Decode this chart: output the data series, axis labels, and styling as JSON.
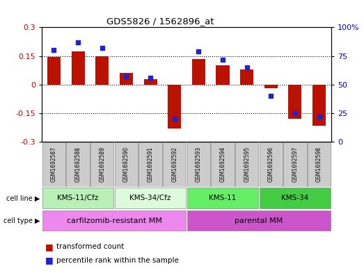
{
  "title": "GDS5826 / 1562896_at",
  "samples": [
    "GSM1692587",
    "GSM1692588",
    "GSM1692589",
    "GSM1692590",
    "GSM1692591",
    "GSM1692592",
    "GSM1692593",
    "GSM1692594",
    "GSM1692595",
    "GSM1692596",
    "GSM1692597",
    "GSM1692598"
  ],
  "transformed_count": [
    0.145,
    0.175,
    0.148,
    0.06,
    0.03,
    -0.23,
    0.135,
    0.1,
    0.08,
    -0.02,
    -0.18,
    -0.215
  ],
  "percentile_rank": [
    80,
    87,
    82,
    57,
    56,
    20,
    79,
    72,
    65,
    40,
    25,
    22
  ],
  "cell_lines": [
    {
      "label": "KMS-11/Cfz",
      "start": 0,
      "end": 3,
      "color": "#b8f0b8"
    },
    {
      "label": "KMS-34/Cfz",
      "start": 3,
      "end": 6,
      "color": "#ddfadd"
    },
    {
      "label": "KMS-11",
      "start": 6,
      "end": 9,
      "color": "#66ee66"
    },
    {
      "label": "KMS-34",
      "start": 9,
      "end": 12,
      "color": "#44cc44"
    }
  ],
  "cell_types": [
    {
      "label": "carfilzomib-resistant MM",
      "start": 0,
      "end": 6,
      "color": "#ee88ee"
    },
    {
      "label": "parental MM",
      "start": 6,
      "end": 12,
      "color": "#cc55cc"
    }
  ],
  "ylim_left": [
    -0.3,
    0.3
  ],
  "ylim_right": [
    0,
    100
  ],
  "yticks_left": [
    -0.3,
    -0.15,
    0.0,
    0.15,
    0.3
  ],
  "yticks_right": [
    0,
    25,
    50,
    75,
    100
  ],
  "bar_color": "#bb1100",
  "dot_color": "#2222cc",
  "bg_color": "#ffffff",
  "plot_bg": "#ffffff",
  "label_color_left": "#cc0000",
  "label_color_right": "#0000cc",
  "bar_width": 0.55
}
